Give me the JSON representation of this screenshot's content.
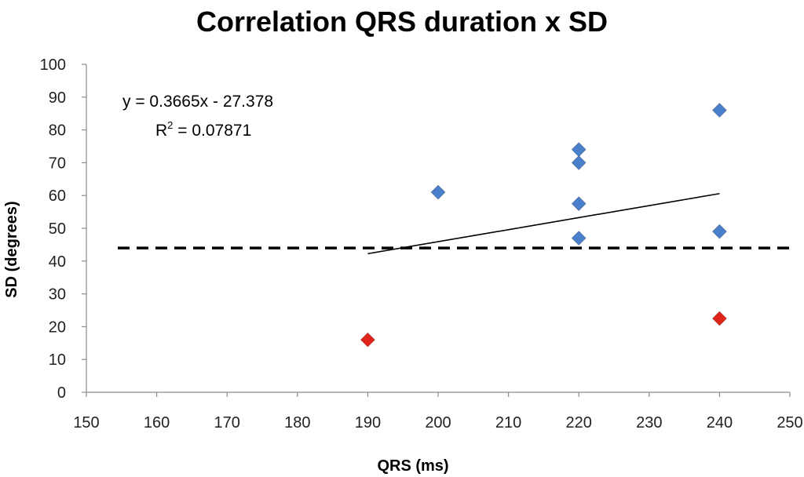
{
  "chart_data": {
    "type": "scatter",
    "title": "Correlation QRS duration x SD",
    "xlabel": "QRS (ms)",
    "ylabel": "SD (degrees)",
    "xlim": [
      150,
      250
    ],
    "ylim": [
      0,
      100
    ],
    "xticks": [
      150,
      160,
      170,
      180,
      190,
      200,
      210,
      220,
      230,
      240,
      250
    ],
    "yticks": [
      0,
      10,
      20,
      30,
      40,
      50,
      60,
      70,
      80,
      90,
      100
    ],
    "grid": false,
    "legend": "none",
    "series": [
      {
        "color": "#4a7fcb",
        "marker": "diamond",
        "points": [
          {
            "x": 200,
            "y": 61
          },
          {
            "x": 220,
            "y": 74
          },
          {
            "x": 220,
            "y": 70
          },
          {
            "x": 220,
            "y": 57.5
          },
          {
            "x": 220,
            "y": 47
          },
          {
            "x": 240,
            "y": 86
          },
          {
            "x": 240,
            "y": 49
          }
        ]
      },
      {
        "color": "#e0241b",
        "marker": "diamond",
        "points": [
          {
            "x": 190,
            "y": 16
          },
          {
            "x": 240,
            "y": 22.5
          }
        ]
      }
    ],
    "trendline": {
      "slope": 0.3665,
      "intercept": -27.378,
      "x_range": [
        190,
        240
      ],
      "color": "#000000"
    },
    "reference_line": {
      "y": 44,
      "style": "dashed",
      "color": "#000000"
    },
    "annotations": {
      "equation": "y = 0.3665x - 27.378",
      "r_squared_prefix": "R",
      "r_squared_exponent": "2",
      "r_squared_value": " = 0.07871"
    }
  }
}
